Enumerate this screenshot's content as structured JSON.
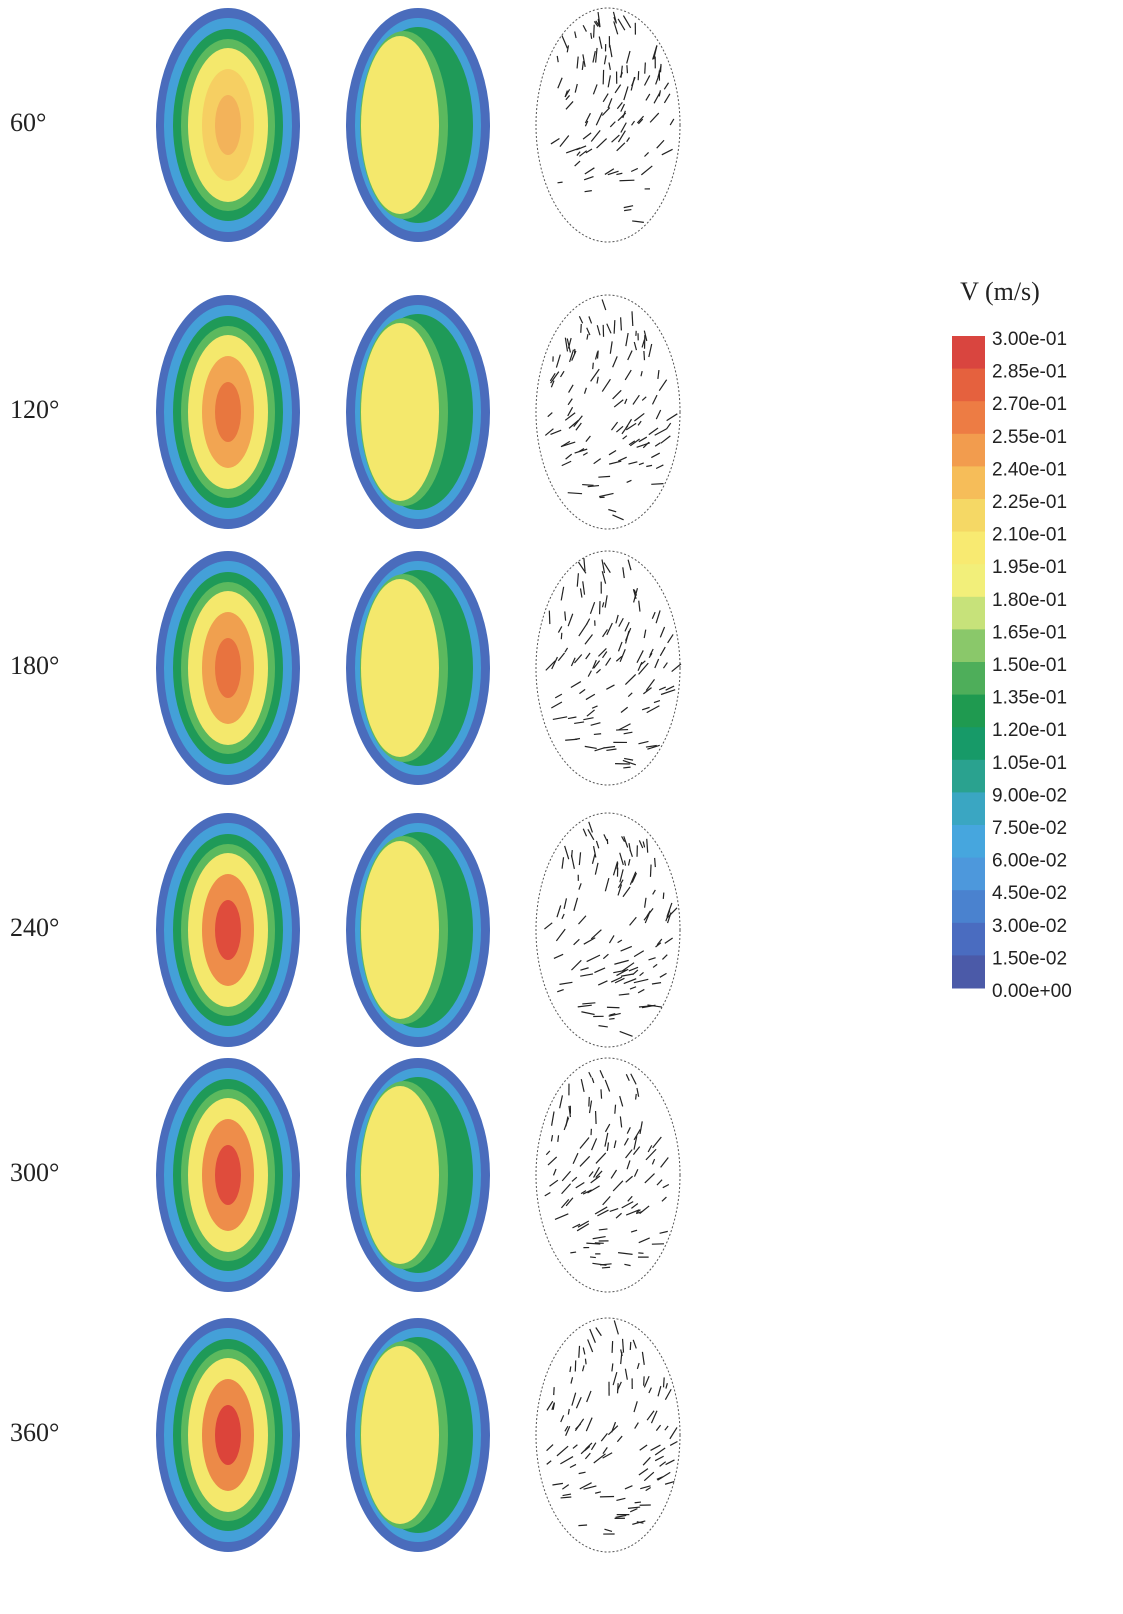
{
  "rows": [
    {
      "label": "60°"
    },
    {
      "label": "120°"
    },
    {
      "label": "180°"
    },
    {
      "label": "240°"
    },
    {
      "label": "300°"
    },
    {
      "label": "360°"
    }
  ],
  "legend": {
    "title": "V (m/s)",
    "labels": [
      "3.00e-01",
      "2.85e-01",
      "2.70e-01",
      "2.55e-01",
      "2.40e-01",
      "2.25e-01",
      "2.10e-01",
      "1.95e-01",
      "1.80e-01",
      "1.65e-01",
      "1.50e-01",
      "1.35e-01",
      "1.20e-01",
      "1.05e-01",
      "9.00e-02",
      "7.50e-02",
      "6.00e-02",
      "4.50e-02",
      "3.00e-02",
      "1.50e-02",
      "0.00e+00"
    ]
  }
}
